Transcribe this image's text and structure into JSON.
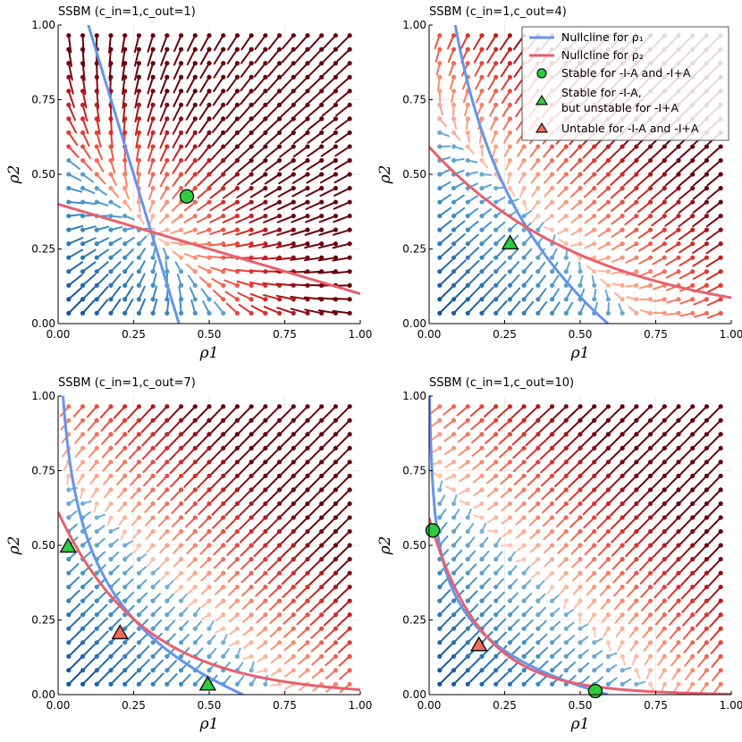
{
  "legend": {
    "entries": [
      {
        "label": "Nullcline for ρ₁",
        "kind": "line",
        "color": "#6495ED"
      },
      {
        "label": "Nullcline for ρ₂",
        "kind": "line",
        "color": "#E8606E"
      },
      {
        "label": "Stable for -I-A and -I+A",
        "kind": "circle",
        "color": "#2ECC40"
      },
      {
        "label": "Stable for -I-A,",
        "label2": "but unstable for -I+A",
        "kind": "triangle",
        "color": "#2ECC40"
      },
      {
        "label": "Untable for -I-A and -I+A",
        "kind": "triangle",
        "color": "#F26B5B"
      }
    ]
  },
  "chart_data": [
    {
      "type": "scatter",
      "title": "SSBM (c_in=1,c_out=1)",
      "c_out": 1,
      "xlabel": "ρ1",
      "ylabel": "ρ2",
      "xlim": [
        0,
        1
      ],
      "ylim": [
        0,
        1
      ],
      "xticks": [
        "0.00",
        "0.25",
        "0.50",
        "0.75",
        "1.00"
      ],
      "yticks": [
        "0.00",
        "0.25",
        "0.50",
        "0.75",
        "1.00"
      ],
      "fixed_points": [
        {
          "x": 0.426,
          "y": 0.426,
          "marker": "circle",
          "color": "#2ECC40"
        }
      ],
      "show_legend": false
    },
    {
      "type": "scatter",
      "title": "SSBM (c_in=1,c_out=4)",
      "c_out": 4,
      "xlabel": "ρ1",
      "ylabel": "ρ2",
      "xlim": [
        0,
        1
      ],
      "ylim": [
        0,
        1
      ],
      "xticks": [
        "0.00",
        "0.25",
        "0.50",
        "0.75",
        "1.00"
      ],
      "yticks": [
        "0.00",
        "0.25",
        "0.50",
        "0.75",
        "1.00"
      ],
      "fixed_points": [
        {
          "x": 0.268,
          "y": 0.268,
          "marker": "triangle",
          "color": "#2ECC40"
        }
      ],
      "show_legend": true
    },
    {
      "type": "scatter",
      "title": "SSBM (c_in=1,c_out=7)",
      "c_out": 7,
      "xlabel": "ρ1",
      "ylabel": "ρ2",
      "xlim": [
        0,
        1
      ],
      "ylim": [
        0,
        1
      ],
      "xticks": [
        "0.00",
        "0.25",
        "0.50",
        "0.75",
        "1.00"
      ],
      "yticks": [
        "0.00",
        "0.25",
        "0.50",
        "0.75",
        "1.00"
      ],
      "fixed_points": [
        {
          "x": 0.033,
          "y": 0.495,
          "marker": "triangle",
          "color": "#2ECC40"
        },
        {
          "x": 0.205,
          "y": 0.205,
          "marker": "triangle",
          "color": "#F26B5B"
        },
        {
          "x": 0.495,
          "y": 0.033,
          "marker": "triangle",
          "color": "#2ECC40"
        }
      ],
      "show_legend": false
    },
    {
      "type": "scatter",
      "title": "SSBM (c_in=1,c_out=10)",
      "c_out": 10,
      "xlabel": "ρ1",
      "ylabel": "ρ2",
      "xlim": [
        0,
        1
      ],
      "ylim": [
        0,
        1
      ],
      "xticks": [
        "0.00",
        "0.25",
        "0.50",
        "0.75",
        "1.00"
      ],
      "yticks": [
        "0.00",
        "0.25",
        "0.50",
        "0.75",
        "1.00"
      ],
      "fixed_points": [
        {
          "x": 0.012,
          "y": 0.55,
          "marker": "circle",
          "color": "#2ECC40"
        },
        {
          "x": 0.165,
          "y": 0.165,
          "marker": "triangle",
          "color": "#F26B5B"
        },
        {
          "x": 0.55,
          "y": 0.012,
          "marker": "circle",
          "color": "#2ECC40"
        }
      ],
      "show_legend": false
    }
  ]
}
